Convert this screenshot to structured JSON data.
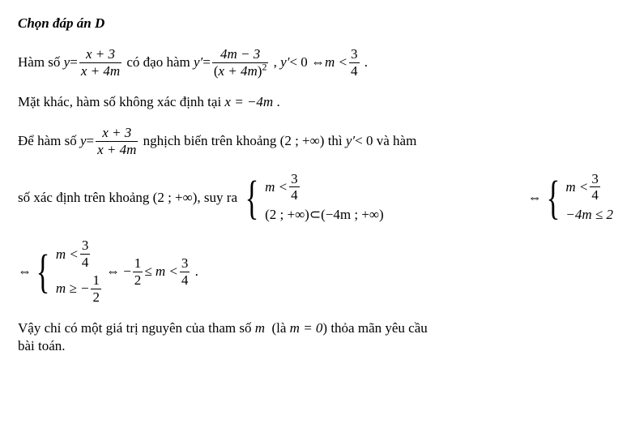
{
  "colors": {
    "text": "#000000",
    "background": "#ffffff"
  },
  "typography": {
    "family": "Times New Roman",
    "body_fontsize_pt": 13,
    "title_weight": "bold",
    "title_style": "italic"
  },
  "title": "Chọn đáp án D",
  "p1": {
    "t1": "Hàm số ",
    "y_eq": "y",
    "eq": " = ",
    "f1_num": "x + 3",
    "f1_den": "x + 4m",
    "t2": " có đạo hàm ",
    "yp": "y′",
    "f2_num": "4m − 3",
    "den_open": "(",
    "den_inner": "x + 4m",
    "den_close": ")",
    "den_exp": "2",
    "t3": " , ",
    "lt0": " < 0 ⇔ ",
    "mlt": "m < ",
    "f3_num": "3",
    "f3_den": "4",
    "dot": " ."
  },
  "p2": {
    "t": "Mặt khác, hàm số không xác định tại ",
    "eq": "x = −4m",
    "dot": " ."
  },
  "p3": {
    "t1": "Để hàm số ",
    "y": "y",
    "eq": " = ",
    "f_num": "x + 3",
    "f_den": "x + 4m",
    "t2": " nghịch biến trên khoảng ",
    "intv": "(2 ; +∞)",
    "t3": " thì ",
    "yp": "y′",
    "lt0": " < 0",
    "t4": " và hàm"
  },
  "p4": {
    "t1": "số xác định trên khoảng ",
    "intv": "(2 ; +∞)",
    "t2": ", suy ra ",
    "case1": "m < ",
    "c1_num": "3",
    "c1_den": "4",
    "case2a": "(2 ; +∞)",
    "subset": " ⊂ ",
    "case2b": "(−4m ; +∞)",
    "iff": "⇔",
    "r_case1": "m < ",
    "r_num": "3",
    "r_den": "4",
    "r_case2": "−4m ≤ 2"
  },
  "p5": {
    "iff1": "⇔",
    "c1": "m < ",
    "c1_num": "3",
    "c1_den": "4",
    "c2": "m ≥ − ",
    "c2_num": "1",
    "c2_den": "2",
    "iff2": "⇔ − ",
    "f1_num": "1",
    "f1_den": "2",
    "mid": " ≤ m < ",
    "f2_num": "3",
    "f2_den": "4",
    "dot": " ."
  },
  "p6": {
    "t1": "Vậy chỉ có một giá trị nguyên của tham số ",
    "m": "m",
    "t2": "  (là ",
    "eq": "m = 0",
    "t3": ") thỏa mãn yêu cầu",
    "t4": "bài toán."
  }
}
